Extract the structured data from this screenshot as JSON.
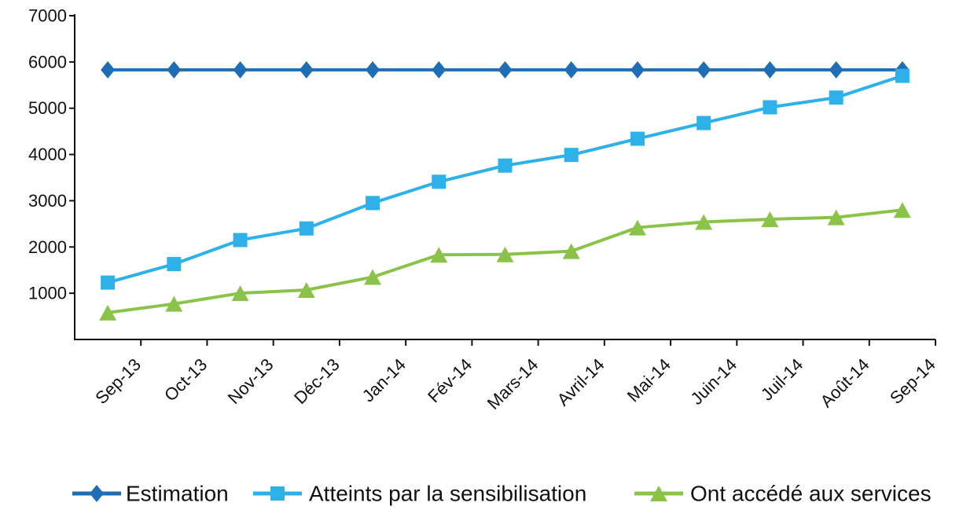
{
  "chart_data": {
    "type": "line",
    "title": "",
    "xlabel": "",
    "ylabel": "",
    "categories": [
      "Sep-13",
      "Oct-13",
      "Nov-13",
      "Déc-13",
      "Jan-14",
      "Fév-14",
      "Mars-14",
      "Avril-14",
      "Mai-14",
      "Juin-14",
      "Juil-14",
      "Août-14",
      "Sep-14"
    ],
    "ylim": [
      0,
      7000
    ],
    "yticks": [
      1000,
      2000,
      3000,
      4000,
      5000,
      6000,
      7000
    ],
    "grid": false,
    "legend_position": "bottom",
    "series": [
      {
        "name": "Estimation",
        "color": "#1f6db3",
        "marker": "diamond",
        "values": [
          5830,
          5830,
          5830,
          5830,
          5830,
          5830,
          5830,
          5830,
          5830,
          5830,
          5830,
          5830,
          5830
        ]
      },
      {
        "name": "Atteints par la sensibilisation",
        "color": "#2eb0e8",
        "marker": "square",
        "values": [
          1230,
          1630,
          2150,
          2400,
          2950,
          3410,
          3760,
          3990,
          4340,
          4680,
          5020,
          5230,
          5700
        ]
      },
      {
        "name": "Ont accédé aux services",
        "color": "#8bc34a",
        "marker": "triangle",
        "values": [
          580,
          770,
          1000,
          1070,
          1350,
          1830,
          1840,
          1910,
          2420,
          2540,
          2600,
          2640,
          2800
        ]
      }
    ]
  }
}
